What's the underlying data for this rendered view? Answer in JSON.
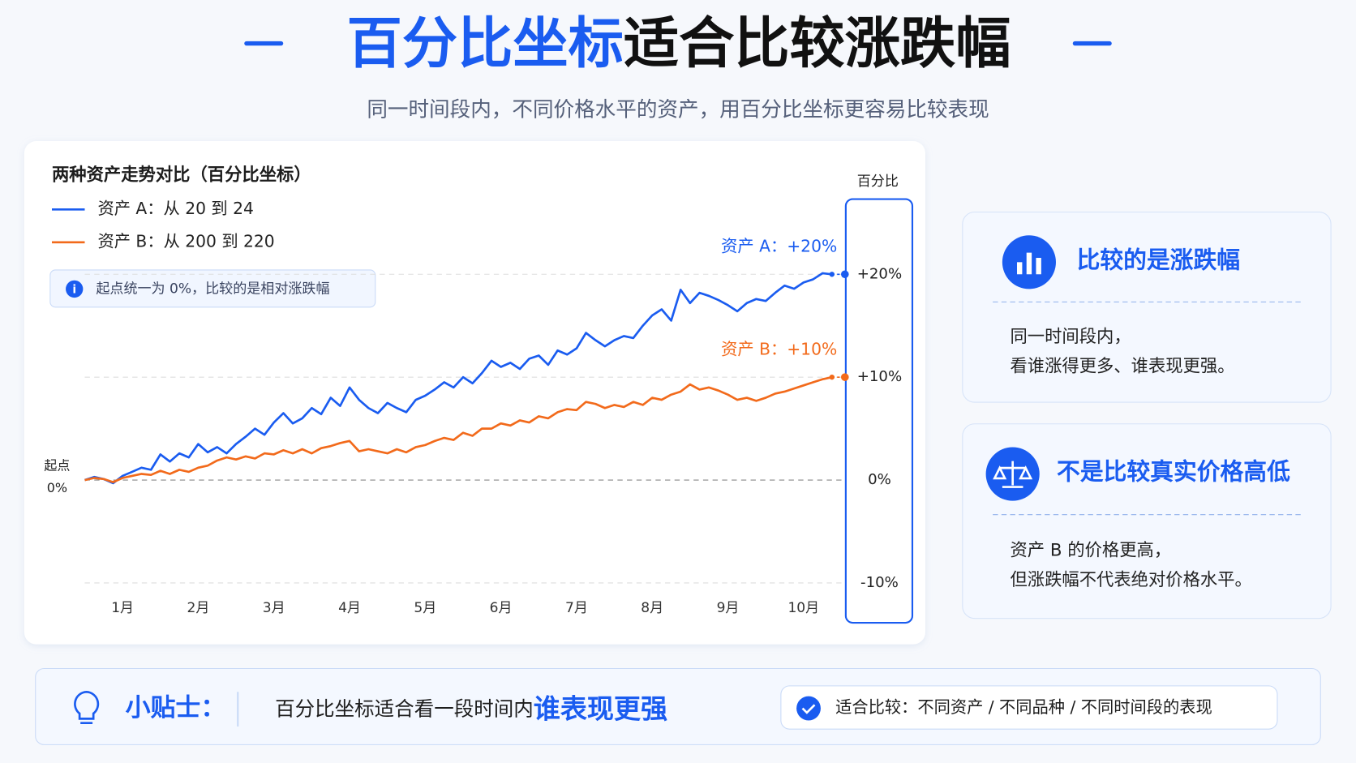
{
  "header": {
    "title_highlight": "百分比坐标",
    "title_rest": "适合比较涨跌幅",
    "subtitle": "同一时间段内，不同价格水平的资产，用百分比坐标更容易比较表现"
  },
  "chart_data": {
    "type": "line",
    "title": "两种资产走势对比（百分比坐标）",
    "note": "起点统一为 0%，比较的是相对涨跌幅",
    "y_axis_label": "百分比",
    "start_label": "起点",
    "start_value_label": "0%",
    "categories": [
      null,
      null,
      null,
      null,
      "1月",
      null,
      null,
      null,
      null,
      null,
      null,
      null,
      "2月",
      null,
      null,
      null,
      null,
      null,
      null,
      null,
      "3月",
      null,
      null,
      null,
      null,
      null,
      null,
      null,
      "4月",
      null,
      null,
      null,
      null,
      null,
      null,
      null,
      "5月",
      null,
      null,
      null,
      null,
      null,
      null,
      null,
      "6月",
      null,
      null,
      null,
      null,
      null,
      null,
      null,
      "7月",
      null,
      null,
      null,
      null,
      null,
      null,
      null,
      "8月",
      null,
      null,
      null,
      null,
      null,
      null,
      null,
      "9月",
      null,
      null,
      null,
      null,
      null,
      null,
      null,
      "10月",
      null,
      null,
      null
    ],
    "series": [
      {
        "name": "资产 A：从 20 到 24",
        "color": "#1a5cf0",
        "end_label": "资产 A：+20%",
        "values": [
          0,
          0.3,
          0.1,
          -0.3,
          0.4,
          0.8,
          1.2,
          1.0,
          2.5,
          1.8,
          2.6,
          2.2,
          3.5,
          2.7,
          3.2,
          2.6,
          3.5,
          4.2,
          5.0,
          4.4,
          5.6,
          6.5,
          5.5,
          6.0,
          7.0,
          6.4,
          8.0,
          7.2,
          9.0,
          7.8,
          7.0,
          6.5,
          7.5,
          7.0,
          6.6,
          7.8,
          8.2,
          8.8,
          9.5,
          9.0,
          10.0,
          9.4,
          10.4,
          11.6,
          11.0,
          11.4,
          10.8,
          11.8,
          12.1,
          11.2,
          12.6,
          12.2,
          12.8,
          14.3,
          13.6,
          13.0,
          13.6,
          14.0,
          13.8,
          15.0,
          16.0,
          16.6,
          15.5,
          18.5,
          17.2,
          18.2,
          17.9,
          17.5,
          17.0,
          16.4,
          17.2,
          17.6,
          17.4,
          18.2,
          18.9,
          18.6,
          19.2,
          19.5,
          20.1,
          20.0
        ]
      },
      {
        "name": "资产 B：从 200 到 220",
        "color": "#f26a1b",
        "end_label": "资产 B：+10%",
        "values": [
          0,
          0.2,
          0.1,
          -0.2,
          0.2,
          0.4,
          0.6,
          0.5,
          0.9,
          0.6,
          1.0,
          0.8,
          1.2,
          1.4,
          1.9,
          2.2,
          2.0,
          2.3,
          2.1,
          2.6,
          2.5,
          2.9,
          2.6,
          3.0,
          2.6,
          3.1,
          3.3,
          3.6,
          3.8,
          2.8,
          3.0,
          2.8,
          2.6,
          3.0,
          2.7,
          3.2,
          3.4,
          3.8,
          4.1,
          3.9,
          4.6,
          4.3,
          5.0,
          5.0,
          5.5,
          5.3,
          5.8,
          5.6,
          6.2,
          6.0,
          6.6,
          6.9,
          6.8,
          7.6,
          7.4,
          7.0,
          7.3,
          7.1,
          7.6,
          7.3,
          8.0,
          7.8,
          8.3,
          8.6,
          9.3,
          8.8,
          9.0,
          8.7,
          8.3,
          7.8,
          8.0,
          7.7,
          8.0,
          8.4,
          8.6,
          8.9,
          9.2,
          9.5,
          9.8,
          10.0
        ]
      }
    ],
    "ylim": [
      -11,
      27
    ],
    "yticks": [
      {
        "value": -10,
        "label": "-10%"
      },
      {
        "value": 0,
        "label": "0%"
      },
      {
        "value": 10,
        "label": "+10%"
      },
      {
        "value": 20,
        "label": "+20%"
      }
    ],
    "grid": true
  },
  "cards": [
    {
      "title": "比较的是涨跌幅",
      "lines": [
        "同一时间段内，",
        "看谁涨得更多、谁表现更强。"
      ]
    },
    {
      "title": "不是比较真实价格高低",
      "lines": [
        "资产 B 的价格更高，",
        "但涨跌幅不代表绝对价格水平。"
      ]
    }
  ],
  "tip": {
    "label": "小贴士：",
    "text": "百分比坐标适合看一段时间内",
    "highlight": "谁表现更强",
    "badge": "适合比较：不同资产 / 不同品种 / 不同时间段的表现"
  }
}
